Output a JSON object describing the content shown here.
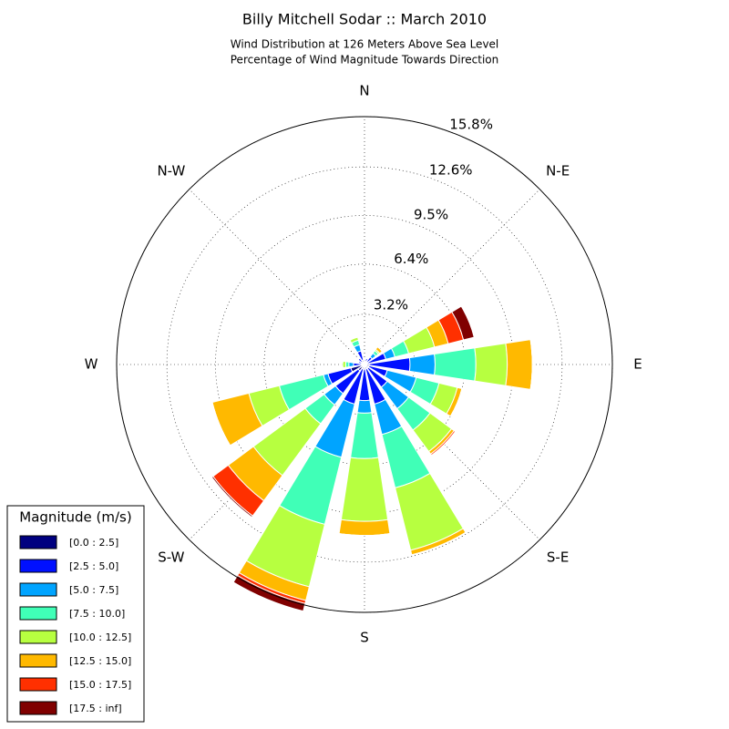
{
  "chart_data": {
    "type": "windrose",
    "title": "Billy Mitchell Sodar :: March 2010",
    "subtitle": [
      "Wind Distribution at 126 Meters Above Sea Level",
      "Percentage of Wind Magnitude Towards Direction"
    ],
    "categories": [
      "N",
      null,
      "N-E",
      null,
      "E",
      null,
      "S-E",
      null,
      "S",
      null,
      "S-W",
      null,
      "W",
      null,
      "N-W",
      null
    ],
    "ylim": [
      0,
      15.8
    ],
    "yticks": [
      {
        "value": 3.2,
        "label": "3.2%"
      },
      {
        "value": 6.4,
        "label": "6.4%"
      },
      {
        "value": 9.5,
        "label": "9.5%"
      },
      {
        "value": 12.6,
        "label": "12.6%"
      },
      {
        "value": 15.8,
        "label": "15.8%"
      }
    ],
    "grid": true,
    "legend_title": "Magnitude (m/s)",
    "legend_position": "lower left",
    "series": [
      {
        "name": "[0.0 : 2.5]",
        "color": "#000080",
        "values": [
          0.3,
          0.2,
          0.2,
          0.2,
          0.3,
          0.3,
          0.3,
          0.3,
          0.3,
          0.3,
          0.5,
          0.9,
          0.2,
          0.2,
          0.2,
          0.3
        ]
      },
      {
        "name": "[2.5 : 5.0]",
        "color": "#0010ff",
        "values": [
          0,
          0.2,
          0.4,
          1.2,
          2.6,
          1.2,
          1.5,
          2.3,
          2.0,
          2.3,
          1.8,
          1.5,
          0.5,
          0.2,
          0.3,
          0.6
        ]
      },
      {
        "name": "[5.0 : 7.5]",
        "color": "#00a4ff",
        "values": [
          0,
          0,
          0.3,
          0.6,
          1.6,
          1.9,
          1.7,
          2.0,
          0.8,
          3.5,
          0.9,
          0.3,
          0.3,
          0,
          0,
          0.4
        ]
      },
      {
        "name": "[7.5 : 10.0]",
        "color": "#40ffb7",
        "values": [
          0,
          0,
          0.2,
          0.9,
          2.6,
          1.5,
          1.7,
          3.5,
          2.9,
          4.4,
          1.5,
          2.9,
          0.2,
          0,
          0,
          0.3
        ]
      },
      {
        "name": "[10.0 : 12.5]",
        "color": "#b7ff40",
        "values": [
          0,
          0,
          0.1,
          1.7,
          2.0,
          1.2,
          1.7,
          4.1,
          4.0,
          4.1,
          4.1,
          2.0,
          0.2,
          0,
          0,
          0.2
        ]
      },
      {
        "name": "[12.5 : 15.0]",
        "color": "#ffb900",
        "values": [
          0,
          0,
          0.2,
          0.9,
          1.6,
          0.3,
          0.2,
          0.3,
          0.9,
          0.9,
          2.0,
          2.4,
          0,
          0,
          0,
          0
        ]
      },
      {
        "name": "[15.0 : 17.5]",
        "color": "#ff3000",
        "values": [
          0,
          0,
          0,
          1.0,
          0,
          0,
          0.1,
          0,
          0,
          0.2,
          1.2,
          0,
          0,
          0,
          0,
          0
        ]
      },
      {
        "name": "[17.5 : inf]",
        "color": "#800000",
        "values": [
          0,
          0,
          0,
          0.7,
          0,
          0,
          0,
          0,
          0,
          0.5,
          0.1,
          0,
          0,
          0,
          0,
          0
        ]
      }
    ]
  }
}
